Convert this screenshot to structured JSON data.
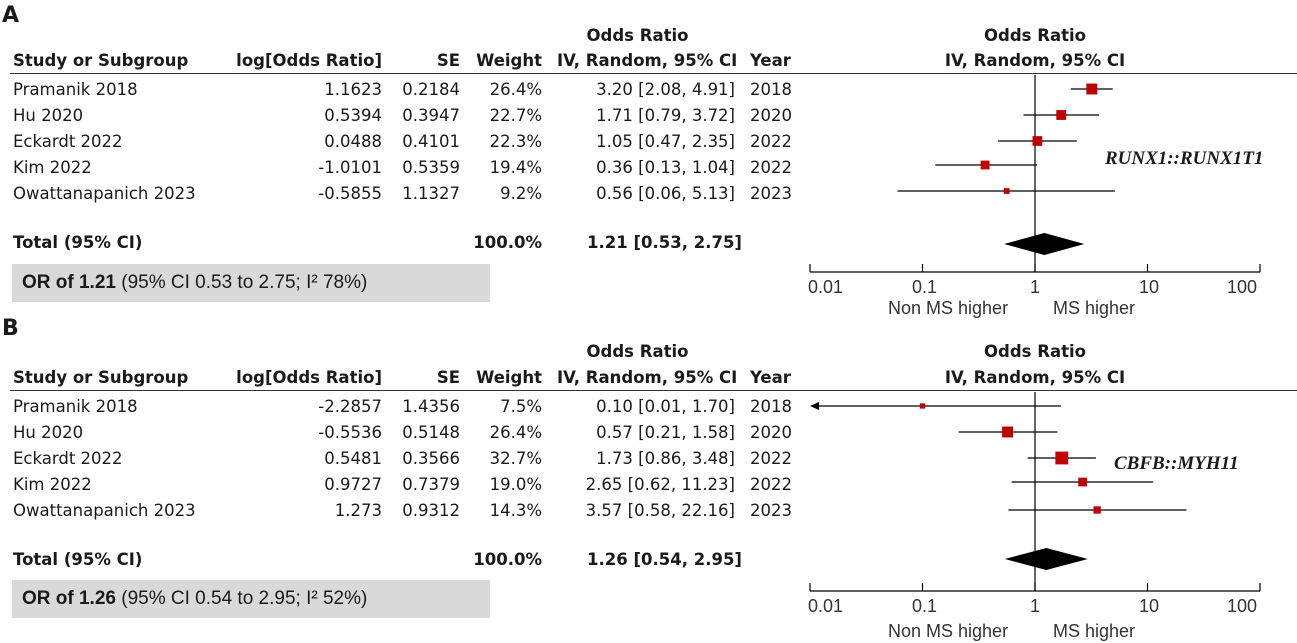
{
  "chart_data": [
    {
      "type": "forest",
      "panel_label": "A",
      "header": {
        "study": "Study or Subgroup",
        "logor": "log[Odds Ratio]",
        "se": "SE",
        "weight": "Weight",
        "or_title": "Odds Ratio",
        "or_sub": "IV, Random, 95% CI",
        "year": "Year",
        "plot_title": "Odds Ratio",
        "plot_sub": "IV, Random, 95% CI"
      },
      "studies": [
        {
          "study": "Pramanik 2018",
          "logor": "1.1623",
          "se": "0.2184",
          "weight": "26.4%",
          "ci_text": "3.20 [2.08, 4.91]",
          "year": "2018",
          "or": 3.2,
          "lo": 2.08,
          "hi": 4.91,
          "w": 26.4
        },
        {
          "study": "Hu 2020",
          "logor": "0.5394",
          "se": "0.3947",
          "weight": "22.7%",
          "ci_text": "1.71 [0.79, 3.72]",
          "year": "2020",
          "or": 1.71,
          "lo": 0.79,
          "hi": 3.72,
          "w": 22.7
        },
        {
          "study": "Eckardt 2022",
          "logor": "0.0488",
          "se": "0.4101",
          "weight": "22.3%",
          "ci_text": "1.05 [0.47, 2.35]",
          "year": "2022",
          "or": 1.05,
          "lo": 0.47,
          "hi": 2.35,
          "w": 22.3
        },
        {
          "study": "Kim 2022",
          "logor": "-1.0101",
          "se": "0.5359",
          "weight": "19.4%",
          "ci_text": "0.36 [0.13, 1.04]",
          "year": "2022",
          "or": 0.36,
          "lo": 0.13,
          "hi": 1.04,
          "w": 19.4
        },
        {
          "study": "Owattanapanich 2023",
          "logor": "-0.5855",
          "se": "1.1327",
          "weight": "9.2%",
          "ci_text": "0.56 [0.06, 5.13]",
          "year": "2023",
          "or": 0.56,
          "lo": 0.06,
          "hi": 5.13,
          "w": 9.2
        }
      ],
      "total": {
        "label": "Total (95% CI)",
        "weight": "100.0%",
        "ci_text": "1.21 [0.53, 2.75]",
        "or": 1.21,
        "lo": 0.53,
        "hi": 2.75
      },
      "summary_bold": "OR of 1.21",
      "summary_rest": " (95% CI 0.53 to 2.75; I² 78%)",
      "gene_label": "RUNX1::RUNX1T1",
      "x_scale": "log",
      "xlim": [
        0.01,
        100
      ],
      "ticks": [
        "0.01",
        "0.1",
        "1",
        "10",
        "100"
      ],
      "axis_left_label": "Non MS higher",
      "axis_right_label": "MS higher",
      "marker_color": "#c00000"
    },
    {
      "type": "forest",
      "panel_label": "B",
      "header": {
        "study": "Study or Subgroup",
        "logor": "log[Odds Ratio]",
        "se": "SE",
        "weight": "Weight",
        "or_title": "Odds Ratio",
        "or_sub": "IV, Random, 95% CI",
        "year": "Year",
        "plot_title": "Odds Ratio",
        "plot_sub": "IV, Random, 95% CI"
      },
      "studies": [
        {
          "study": "Pramanik 2018",
          "logor": "-2.2857",
          "se": "1.4356",
          "weight": "7.5%",
          "ci_text": "0.10 [0.01, 1.70]",
          "year": "2018",
          "or": 0.1,
          "lo": 0.01,
          "hi": 1.7,
          "w": 7.5
        },
        {
          "study": "Hu 2020",
          "logor": "-0.5536",
          "se": "0.5148",
          "weight": "26.4%",
          "ci_text": "0.57 [0.21, 1.58]",
          "year": "2020",
          "or": 0.57,
          "lo": 0.21,
          "hi": 1.58,
          "w": 26.4
        },
        {
          "study": "Eckardt 2022",
          "logor": "0.5481",
          "se": "0.3566",
          "weight": "32.7%",
          "ci_text": "1.73 [0.86, 3.48]",
          "year": "2022",
          "or": 1.73,
          "lo": 0.86,
          "hi": 3.48,
          "w": 32.7
        },
        {
          "study": "Kim 2022",
          "logor": "0.9727",
          "se": "0.7379",
          "weight": "19.0%",
          "ci_text": "2.65 [0.62, 11.23]",
          "year": "2022",
          "or": 2.65,
          "lo": 0.62,
          "hi": 11.23,
          "w": 19.0
        },
        {
          "study": "Owattanapanich 2023",
          "logor": "1.273",
          "se": "0.9312",
          "weight": "14.3%",
          "ci_text": "3.57 [0.58, 22.16]",
          "year": "2023",
          "or": 3.57,
          "lo": 0.58,
          "hi": 22.16,
          "w": 14.3
        }
      ],
      "total": {
        "label": "Total (95% CI)",
        "weight": "100.0%",
        "ci_text": "1.26 [0.54, 2.95]",
        "or": 1.26,
        "lo": 0.54,
        "hi": 2.95
      },
      "summary_bold": "OR of 1.26",
      "summary_rest": " (95% CI 0.54 to 2.95; I² 52%)",
      "gene_label": "CBFB::MYH11",
      "x_scale": "log",
      "xlim": [
        0.01,
        100
      ],
      "ticks": [
        "0.01",
        "0.1",
        "1",
        "10",
        "100"
      ],
      "axis_left_label": "Non MS higher",
      "axis_right_label": "MS higher",
      "marker_color": "#c00000"
    }
  ]
}
